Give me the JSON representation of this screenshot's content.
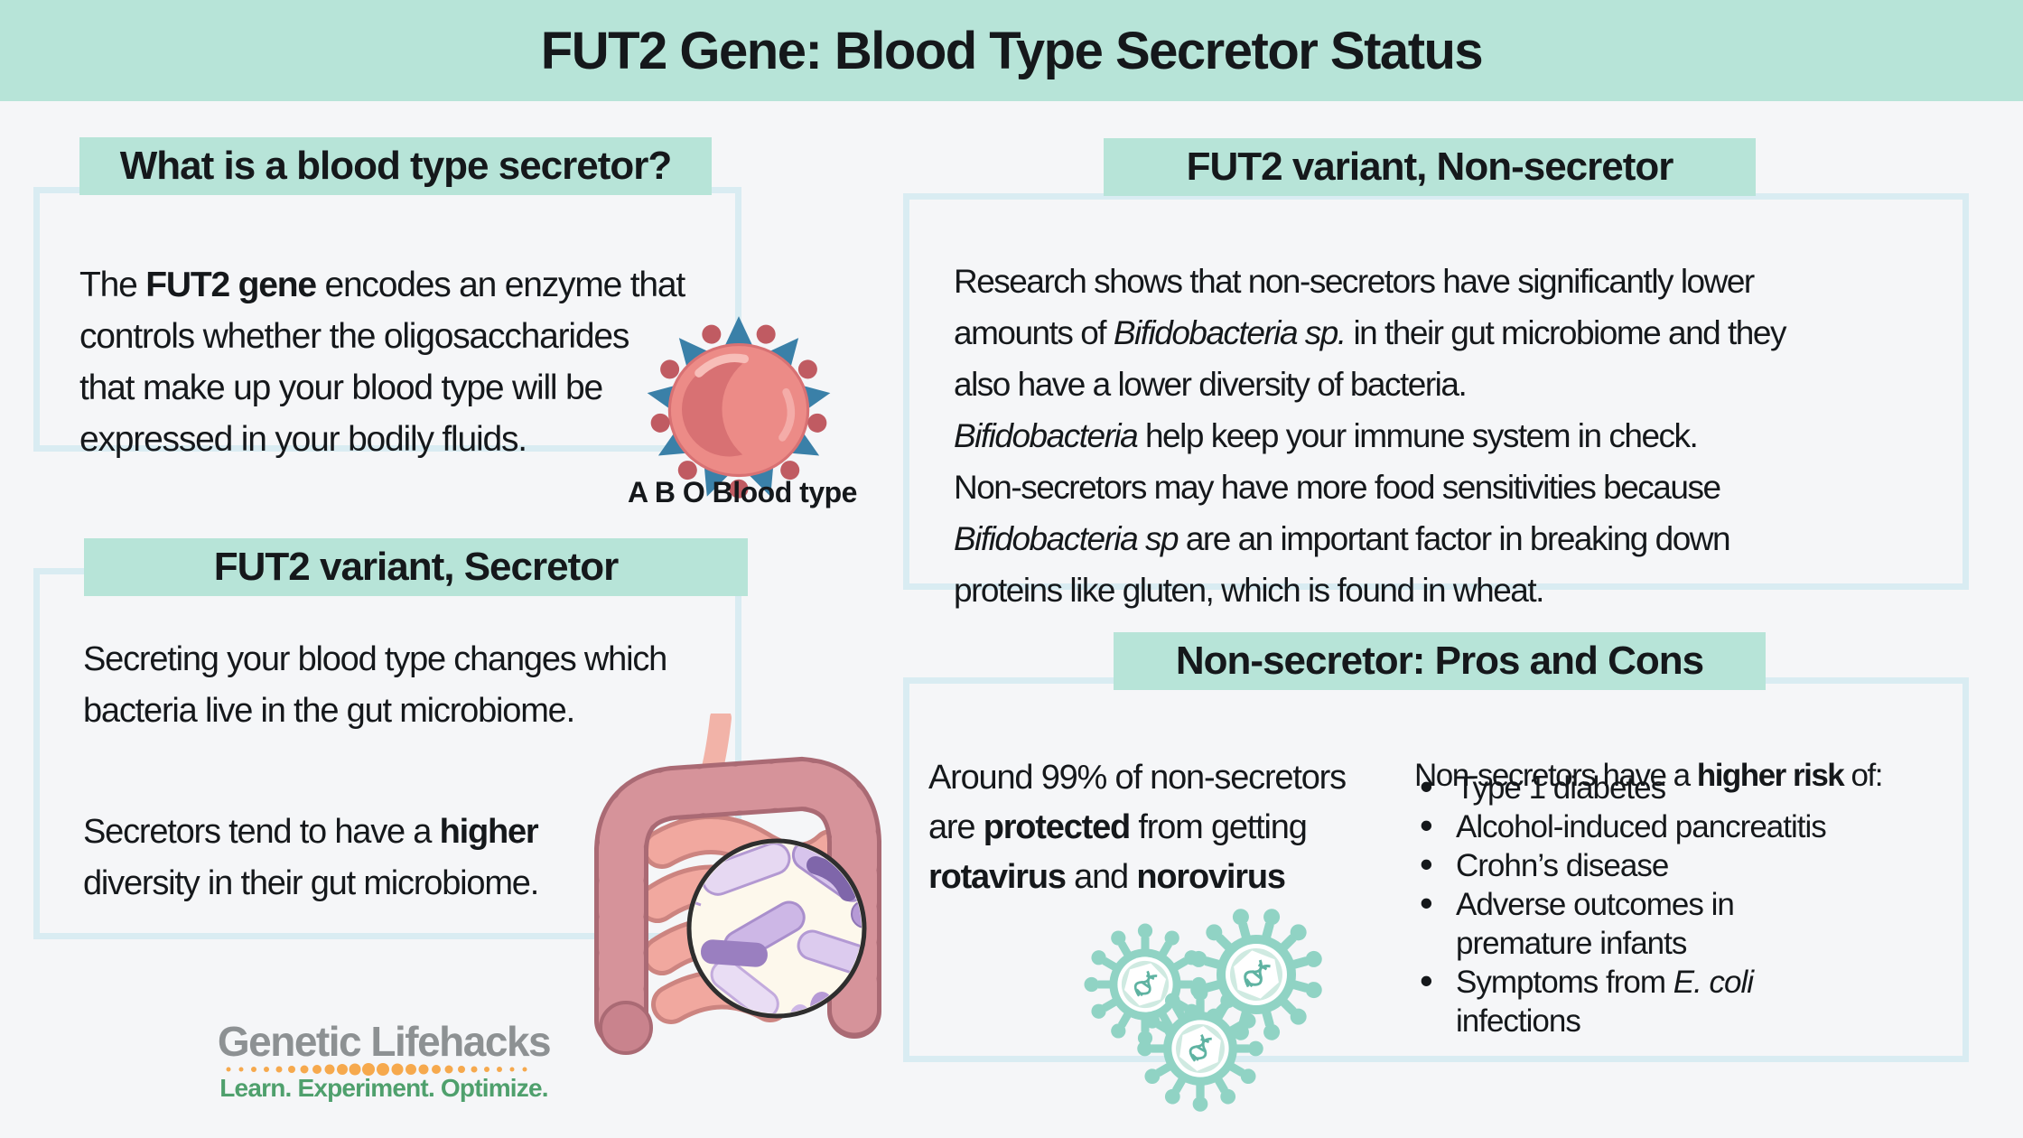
{
  "title": "FUT2 Gene: Blood Type Secretor Status",
  "colors": {
    "mint": "#b7e4d8",
    "page-bg": "#f5f6f8",
    "box-border": "#d9ecf2",
    "ink": "#15181b",
    "logo-gray": "#8d9193",
    "logo-green": "#4fa06d",
    "logo-orange": "#f6a94d",
    "virus-teal": "#90d3c4",
    "cell-red": "#ec8b87"
  },
  "boxes": {
    "what": {
      "header": "What is a blood type secretor?",
      "body": [
        {
          "t": "The "
        },
        {
          "t": "FUT2 gene",
          "b": true
        },
        {
          "t": " encodes an enzyme that"
        },
        {
          "br": true
        },
        {
          "t": "controls whether the oligosaccharides"
        },
        {
          "br": true
        },
        {
          "t": "that make up your blood type will be"
        },
        {
          "br": true
        },
        {
          "t": "expressed in your bodily fluids."
        }
      ],
      "caption": "A B O Blood type"
    },
    "nonsecretor": {
      "header": "FUT2 variant, Non-secretor",
      "body": [
        {
          "t": "Research shows that non-secretors have significantly lower"
        },
        {
          "br": true
        },
        {
          "t": "amounts of "
        },
        {
          "t": "Bifidobacteria sp.",
          "i": true
        },
        {
          "t": " in their gut microbiome and they"
        },
        {
          "br": true
        },
        {
          "t": "also have a lower diversity of bacteria."
        },
        {
          "br": true
        },
        {
          "t": "Bifidobacteria",
          "i": true
        },
        {
          "t": " help keep your immune system in check."
        },
        {
          "br": true
        },
        {
          "t": "Non-secretors may have more food sensitivities because"
        },
        {
          "br": true
        },
        {
          "t": "Bifidobacteria sp",
          "i": true
        },
        {
          "t": " are an important factor in breaking down"
        },
        {
          "br": true
        },
        {
          "t": "proteins like gluten, which is found in wheat."
        }
      ]
    },
    "secretor": {
      "header": "FUT2 variant, Secretor",
      "para1": [
        {
          "t": "Secreting your blood type changes which"
        },
        {
          "br": true
        },
        {
          "t": "bacteria live in the gut microbiome."
        }
      ],
      "para2": [
        {
          "t": "Secretors tend to have a "
        },
        {
          "t": "higher",
          "b": true
        },
        {
          "br": true
        },
        {
          "t": "diversity in their gut microbiome."
        }
      ]
    },
    "proscons": {
      "header": "Non-secretor: Pros and Cons",
      "pros": [
        {
          "t": "Around 99% of non-secretors"
        },
        {
          "br": true
        },
        {
          "t": "are "
        },
        {
          "t": "protected",
          "b": true
        },
        {
          "t": " from getting"
        },
        {
          "br": true
        },
        {
          "t": "rotavirus",
          "b": true
        },
        {
          "t": " and "
        },
        {
          "t": "norovirus",
          "b": true
        }
      ],
      "cons_heading": [
        {
          "t": "Non-secretors have a "
        },
        {
          "t": "higher risk",
          "b": true
        },
        {
          "t": " of:"
        }
      ],
      "cons": [
        [
          {
            "t": "Type 1 diabetes"
          }
        ],
        [
          {
            "t": "Alcohol-induced pancreatitis"
          }
        ],
        [
          {
            "t": "Crohn’s disease"
          }
        ],
        [
          {
            "t": "Adverse outcomes in"
          },
          {
            "br": true
          },
          {
            "t": "premature infants"
          }
        ],
        [
          {
            "t": "Symptoms from "
          },
          {
            "t": "E. coli",
            "i": true
          },
          {
            "br": true
          },
          {
            "t": "infections"
          }
        ]
      ]
    }
  },
  "icons": {
    "blood_cell": "red-blood-cell-with-antigens-icon",
    "gut": "intestines-with-magnified-bacteria-icon",
    "viruses": "virus-particles-icon",
    "logo_dots": "orange-dotted-divider"
  },
  "logo": {
    "name": "Genetic Lifehacks",
    "tagline": "Learn. Experiment. Optimize."
  }
}
